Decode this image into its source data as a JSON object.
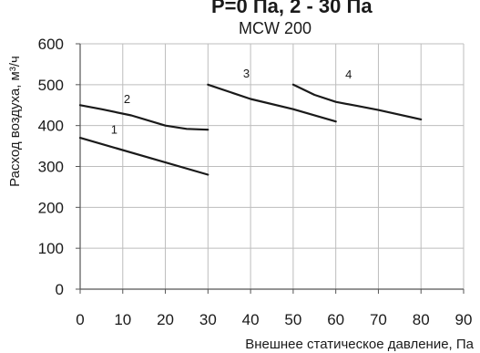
{
  "header_partial": "P=0 Па, 2 - 30 Па",
  "chart_data": {
    "type": "line",
    "title": "MCW 200",
    "xlabel": "Внешнее статическое давление, Па",
    "ylabel": "Расход воздуха, м³/ч",
    "xlim": [
      0,
      90
    ],
    "ylim": [
      0,
      600
    ],
    "x_ticks": [
      "0",
      "10",
      "20",
      "30",
      "40",
      "50",
      "60",
      "70",
      "80",
      "90"
    ],
    "y_ticks": [
      "0",
      "100",
      "200",
      "300",
      "400",
      "500",
      "600"
    ],
    "grid": true,
    "series": [
      {
        "name": "1",
        "x": [
          0,
          30
        ],
        "y": [
          370,
          280
        ]
      },
      {
        "name": "2",
        "x": [
          0,
          5,
          12,
          20,
          25,
          30
        ],
        "y": [
          450,
          440,
          425,
          400,
          392,
          390
        ]
      },
      {
        "name": "3",
        "x": [
          30,
          40,
          50,
          60
        ],
        "y": [
          500,
          465,
          440,
          410
        ]
      },
      {
        "name": "4",
        "x": [
          50,
          55,
          60,
          65,
          70,
          80
        ],
        "y": [
          500,
          475,
          458,
          448,
          438,
          415
        ]
      }
    ],
    "label_positions": [
      {
        "name": "1",
        "x": 8,
        "y": 380
      },
      {
        "name": "2",
        "x": 11,
        "y": 455
      },
      {
        "name": "3",
        "x": 39,
        "y": 518
      },
      {
        "name": "4",
        "x": 63,
        "y": 515
      }
    ]
  }
}
